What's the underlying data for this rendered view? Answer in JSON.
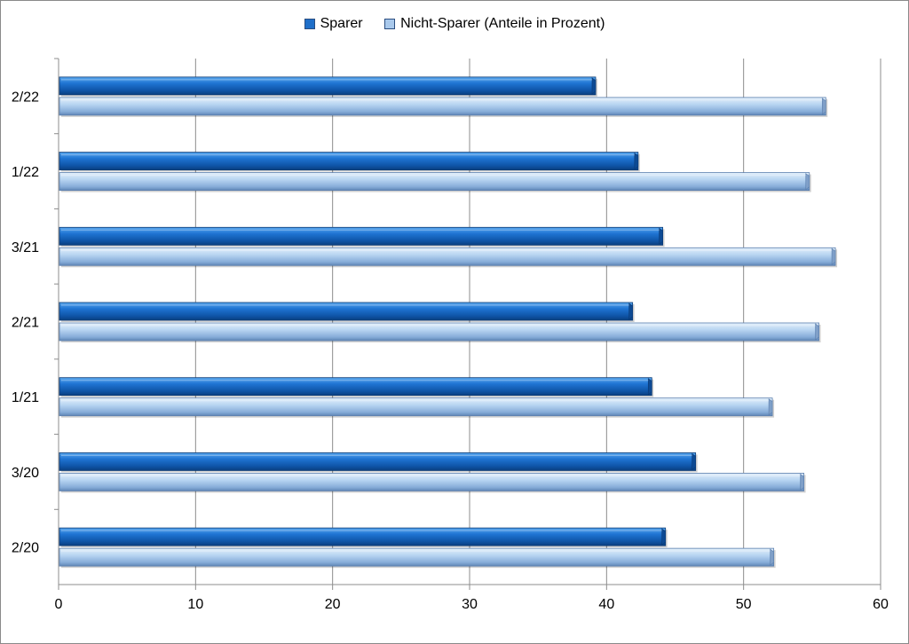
{
  "chart_data": {
    "type": "bar",
    "orientation": "horizontal",
    "categories": [
      "2/20",
      "3/20",
      "1/21",
      "2/21",
      "3/21",
      "1/22",
      "2/22"
    ],
    "series": [
      {
        "name": "Sparer",
        "values": [
          44.3,
          46.5,
          43.3,
          41.9,
          44.1,
          42.3,
          39.2
        ]
      },
      {
        "name": "Nicht-Sparer  (Anteile in Prozent)",
        "values": [
          52.2,
          54.4,
          52.1,
          55.5,
          56.7,
          54.8,
          56.0
        ]
      }
    ],
    "xlim": [
      0,
      60
    ],
    "xticks": [
      0,
      10,
      20,
      30,
      40,
      50,
      60
    ],
    "grid": "vertical",
    "legend_position": "top-center",
    "colors": {
      "Sparer": "#1f6fc9",
      "Nicht-Sparer  (Anteile in Prozent)": "#a9c9ec"
    }
  }
}
